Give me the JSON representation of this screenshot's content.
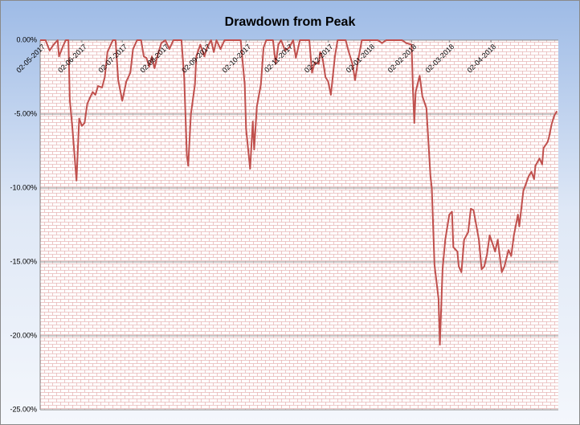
{
  "chart_data": {
    "type": "line",
    "title": "Drawdown from Peak",
    "x": [
      "02-05-2017",
      "06-05-2017",
      "09-05-2017",
      "12-05-2017",
      "15-05-2017",
      "16-05-2017",
      "19-05-2017",
      "21-05-2017",
      "23-05-2017",
      "24-05-2017",
      "26-05-2017",
      "29-05-2017",
      "31-05-2017",
      "02-06-2017",
      "04-06-2017",
      "06-06-2017",
      "08-06-2017",
      "10-06-2017",
      "12-06-2017",
      "14-06-2017",
      "17-06-2017",
      "19-06-2017",
      "21-06-2017",
      "25-06-2017",
      "27-06-2017",
      "29-06-2017",
      "02-07-2017",
      "05-07-2017",
      "08-07-2017",
      "10-07-2017",
      "13-07-2017",
      "16-07-2017",
      "18-07-2017",
      "20-07-2017",
      "22-07-2017",
      "24-07-2017",
      "26-07-2017",
      "28-07-2017",
      "31-07-2017",
      "03-08-2017",
      "06-08-2017",
      "09-08-2017",
      "15-08-2017",
      "17-08-2017",
      "19-08-2017",
      "20-08-2017",
      "22-08-2017",
      "25-08-2017",
      "26-08-2017",
      "29-08-2017",
      "01-09-2017",
      "03-09-2017",
      "06-09-2017",
      "08-09-2017",
      "10-09-2017",
      "13-09-2017",
      "16-09-2017",
      "28-09-2017",
      "01-10-2017",
      "02-10-2017",
      "05-10-2017",
      "07-10-2017",
      "08-10-2017",
      "10-10-2017",
      "13-10-2017",
      "15-10-2017",
      "17-10-2017",
      "22-10-2017",
      "24-10-2017",
      "26-10-2017",
      "28-10-2017",
      "31-10-2017",
      "03-11-2017",
      "06-11-2017",
      "08-11-2017",
      "11-11-2017",
      "18-11-2017",
      "20-11-2017",
      "22-11-2017",
      "25-11-2017",
      "26-11-2017",
      "28-11-2017",
      "30-11-2017",
      "02-12-2017",
      "04-12-2017",
      "07-12-2017",
      "09-12-2017",
      "15-12-2017",
      "17-12-2017",
      "20-12-2017",
      "22-12-2017",
      "24-12-2017",
      "27-12-2017",
      "08-01-2018",
      "11-01-2018",
      "14-01-2018",
      "26-01-2018",
      "29-01-2018",
      "02-02-2018",
      "03-02-2018",
      "04-02-2018",
      "05-02-2018",
      "08-02-2018",
      "10-02-2018",
      "13-02-2018",
      "16-02-2018",
      "17-02-2018",
      "19-02-2018",
      "22-02-2018",
      "23-02-2018",
      "25-02-2018",
      "27-02-2018",
      "02-03-2018",
      "04-03-2018",
      "05-03-2018",
      "08-03-2018",
      "09-03-2018",
      "11-03-2018",
      "13-03-2018",
      "16-03-2018",
      "18-03-2018",
      "20-03-2018",
      "22-03-2018",
      "24-03-2018",
      "26-03-2018",
      "28-03-2018",
      "30-03-2018",
      "01-04-2018",
      "04-04-2018",
      "05-04-2018",
      "07-04-2018",
      "10-04-2018",
      "12-04-2018",
      "15-04-2018",
      "17-04-2018",
      "19-04-2018",
      "22-04-2018",
      "23-04-2018",
      "26-04-2018",
      "28-04-2018",
      "30-04-2018",
      "02-05-2018",
      "04-05-2018",
      "05-05-2018",
      "08-05-2018",
      "10-05-2018",
      "11-05-2018",
      "14-05-2018",
      "15-05-2018",
      "17-05-2018",
      "19-05-2018",
      "21-05-2018"
    ],
    "series": [
      {
        "color": "#c0504d",
        "values": [
          0,
          0,
          -0.7,
          -0.3,
          0,
          -1.1,
          -0.4,
          0,
          0,
          -4,
          -6,
          -9.5,
          -5.3,
          -5.8,
          -5.6,
          -4.3,
          -3.9,
          -3.5,
          -3.7,
          -3.1,
          -3.2,
          -2.5,
          -0.8,
          0,
          0,
          -2.7,
          -4.1,
          -2.8,
          -2.2,
          -0.6,
          0,
          0,
          -1.1,
          -1.2,
          -1.8,
          -1.1,
          -1.9,
          -1.1,
          -0.2,
          0,
          -0.6,
          0,
          0,
          -2.5,
          -7.8,
          -8.5,
          -5,
          -3,
          -1.1,
          -0.3,
          -1.1,
          -0.5,
          0,
          -0.8,
          0,
          -0.6,
          0,
          0,
          -3,
          -6,
          -8.7,
          -5.5,
          -7.4,
          -4.5,
          -3,
          -0.5,
          0,
          0,
          -1.6,
          -0.3,
          0,
          -0.7,
          -0.5,
          0,
          -1.2,
          0,
          0,
          -2.2,
          -1.5,
          -1.6,
          -0.8,
          -1.3,
          -2.5,
          -2.8,
          -3.7,
          -1.1,
          0,
          0,
          -0.7,
          -1.6,
          -2.7,
          -1.5,
          0,
          0,
          -0.2,
          0,
          0,
          -0.2,
          -0.3,
          -3.4,
          -5.6,
          -3.5,
          -2.4,
          -3.8,
          -4.6,
          -9.2,
          -10,
          -15.2,
          -17.5,
          -20.6,
          -15.5,
          -13.5,
          -11.8,
          -11.6,
          -14,
          -14.3,
          -15.3,
          -15.7,
          -13.5,
          -13,
          -11.4,
          -11.5,
          -12.5,
          -13.5,
          -15.5,
          -15.3,
          -14.5,
          -13.2,
          -14,
          -14.3,
          -13.5,
          -15.7,
          -15.3,
          -14.2,
          -14.6,
          -13.2,
          -11.8,
          -12.6,
          -10.2,
          -9.7,
          -9.2,
          -8.9,
          -9.4,
          -8.5,
          -8,
          -8.4,
          -7.3,
          -6.9,
          -6.6,
          -5.7,
          -5.1,
          -4.8
        ]
      }
    ],
    "xlim": [
      "02-05-2017",
      "22-05-2018"
    ],
    "xticks": [
      "02-05-2017",
      "02-06-2017",
      "02-07-2017",
      "02-08-2017",
      "02-09-2017",
      "02-10-2017",
      "02-11-2017",
      "02-12-2017",
      "02-01-2018",
      "02-02-2018",
      "02-03-2018",
      "02-04-2018"
    ],
    "ylim": [
      -25,
      0
    ],
    "yticks": [
      {
        "value": 0,
        "label": "0.00%"
      },
      {
        "value": -5,
        "label": "-5.00%"
      },
      {
        "value": -10,
        "label": "-10.00%"
      },
      {
        "value": -15,
        "label": "-15.00%"
      },
      {
        "value": -20,
        "label": "-20.00%"
      },
      {
        "value": -25,
        "label": "-25.00%"
      }
    ],
    "grid": true
  }
}
